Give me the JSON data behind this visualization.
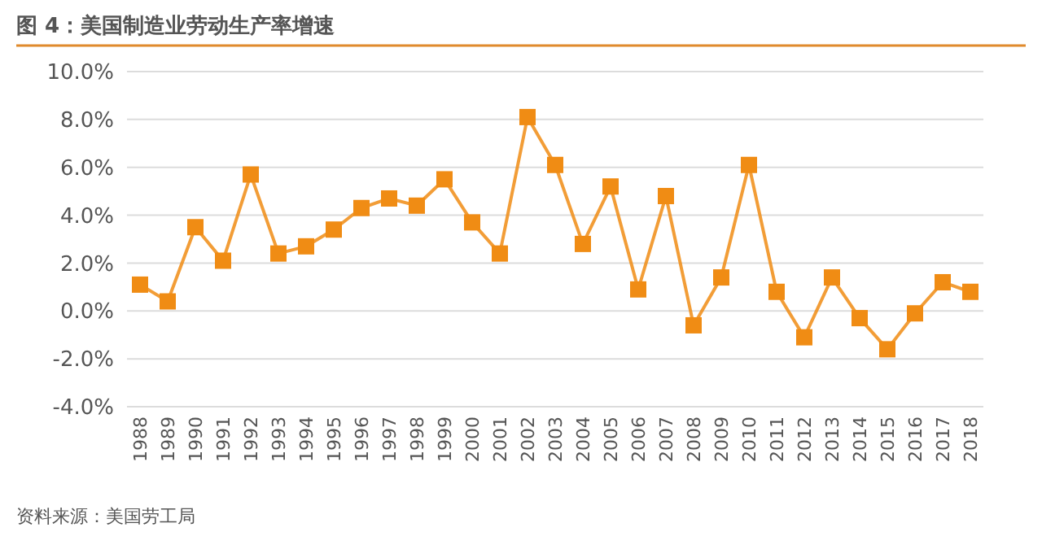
{
  "chart_data": {
    "type": "line",
    "title": "图 4：美国制造业劳动生产率增速",
    "categories": [
      "1988",
      "1989",
      "1990",
      "1991",
      "1992",
      "1993",
      "1994",
      "1995",
      "1996",
      "1997",
      "1998",
      "1999",
      "2000",
      "2001",
      "2002",
      "2003",
      "2004",
      "2005",
      "2006",
      "2007",
      "2008",
      "2009",
      "2010",
      "2011",
      "2012",
      "2013",
      "2014",
      "2015",
      "2016",
      "2017",
      "2018"
    ],
    "series": [
      {
        "color": "#f08c14",
        "values": [
          1.1,
          0.4,
          3.5,
          2.1,
          5.7,
          2.4,
          2.7,
          3.4,
          4.3,
          4.7,
          4.4,
          5.5,
          3.7,
          2.4,
          8.1,
          6.1,
          2.8,
          5.2,
          0.9,
          4.8,
          -0.6,
          1.4,
          6.1,
          0.8,
          -1.1,
          1.4,
          -0.3,
          -1.6,
          -0.1,
          1.2,
          0.8
        ]
      }
    ],
    "ylim": [
      -4,
      10
    ],
    "yticks": [
      {
        "value": -4,
        "label": "-4.0%"
      },
      {
        "value": -2,
        "label": "-2.0%"
      },
      {
        "value": 0,
        "label": "0.0%"
      },
      {
        "value": 2,
        "label": "2.0%"
      },
      {
        "value": 4,
        "label": "4.0%"
      },
      {
        "value": 6,
        "label": "6.0%"
      },
      {
        "value": 8,
        "label": "8.0%"
      },
      {
        "value": 10,
        "label": "10.0%"
      }
    ],
    "grid": "y",
    "marker": "square",
    "line_style": "solid",
    "annotations": [
      "资料来源：美国劳工局"
    ]
  }
}
